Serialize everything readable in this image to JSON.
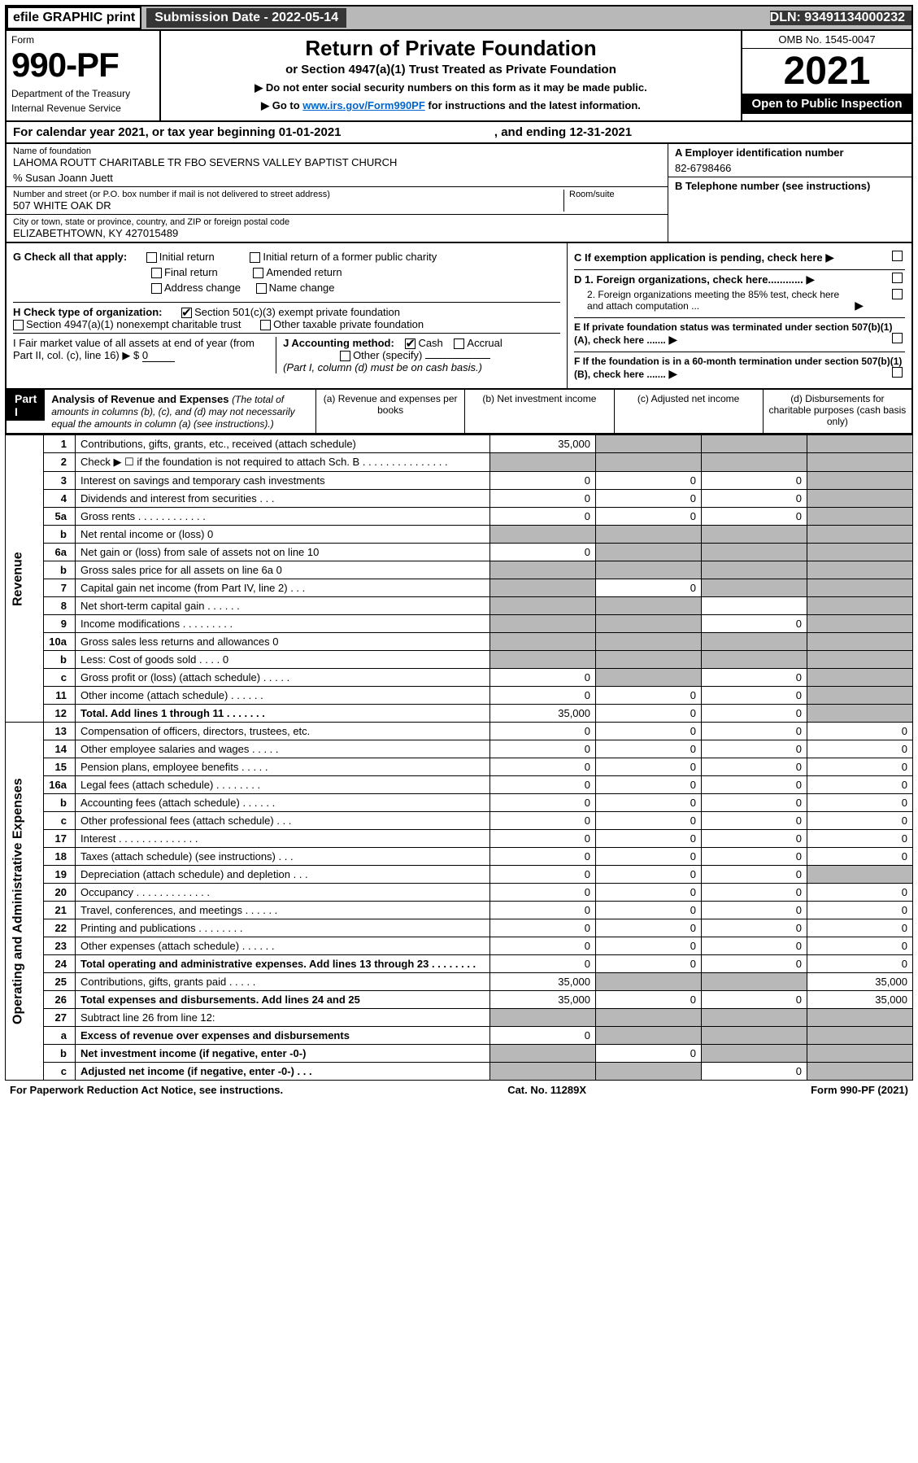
{
  "top": {
    "efile": "efile GRAPHIC print",
    "subdate_label": "Submission Date - 2022-05-14",
    "dln": "DLN: 93491134000232"
  },
  "header": {
    "form_word": "Form",
    "form_num": "990-PF",
    "dept": "Department of the Treasury",
    "irs": "Internal Revenue Service",
    "title": "Return of Private Foundation",
    "subtitle": "or Section 4947(a)(1) Trust Treated as Private Foundation",
    "instr1": "▶ Do not enter social security numbers on this form as it may be made public.",
    "instr2_pre": "▶ Go to ",
    "instr2_link": "www.irs.gov/Form990PF",
    "instr2_post": " for instructions and the latest information.",
    "omb": "OMB No. 1545-0047",
    "year": "2021",
    "open": "Open to Public Inspection"
  },
  "calyear": {
    "text_pre": "For calendar year 2021, or tax year beginning 01-01-2021",
    "text_mid": ", and ending 12-31-2021"
  },
  "info": {
    "name_label": "Name of foundation",
    "name": "LAHOMA ROUTT CHARITABLE TR FBO SEVERNS VALLEY BAPTIST CHURCH",
    "care": "% Susan Joann Juett",
    "addr_label": "Number and street (or P.O. box number if mail is not delivered to street address)",
    "addr": "507 WHITE OAK DR",
    "room_label": "Room/suite",
    "city_label": "City or town, state or province, country, and ZIP or foreign postal code",
    "city": "ELIZABETHTOWN, KY 427015489",
    "ein_label": "A Employer identification number",
    "ein": "82-6798466",
    "tel_label": "B Telephone number (see instructions)",
    "c_label": "C If exemption application is pending, check here",
    "d1": "D 1. Foreign organizations, check here............",
    "d2": "2. Foreign organizations meeting the 85% test, check here and attach computation ...",
    "e": "E If private foundation status was terminated under section 507(b)(1)(A), check here .......",
    "f": "F If the foundation is in a 60-month termination under section 507(b)(1)(B), check here ......."
  },
  "g": {
    "label": "G Check all that apply:",
    "opts": [
      "Initial return",
      "Final return",
      "Address change",
      "Initial return of a former public charity",
      "Amended return",
      "Name change"
    ]
  },
  "h": {
    "label": "H Check type of organization:",
    "o1": "Section 501(c)(3) exempt private foundation",
    "o2": "Section 4947(a)(1) nonexempt charitable trust",
    "o3": "Other taxable private foundation"
  },
  "i": {
    "label_pre": "I Fair market value of all assets at end of year (from Part II, col. (c), line 16) ▶ $ ",
    "val": "0"
  },
  "j": {
    "label": "J Accounting method:",
    "cash": "Cash",
    "accrual": "Accrual",
    "other": "Other (specify)",
    "note": "(Part I, column (d) must be on cash basis.)"
  },
  "part1": {
    "badge": "Part I",
    "title": "Analysis of Revenue and Expenses",
    "note": "(The total of amounts in columns (b), (c), and (d) may not necessarily equal the amounts in column (a) (see instructions).)",
    "cols": {
      "a": "(a) Revenue and expenses per books",
      "b": "(b) Net investment income",
      "c": "(c) Adjusted net income",
      "d": "(d) Disbursements for charitable purposes (cash basis only)"
    }
  },
  "sections": {
    "revenue": "Revenue",
    "opadmin": "Operating and Administrative Expenses"
  },
  "rows": [
    {
      "n": "1",
      "d": "Contributions, gifts, grants, etc., received (attach schedule)",
      "a": "35,000",
      "b": "",
      "c": "",
      "dd": "",
      "sb": true,
      "sc": true,
      "sd": true
    },
    {
      "n": "2",
      "d": "Check ▶ ☐ if the foundation is not required to attach Sch. B  . . . . . . . . . . . . . . .",
      "a": "",
      "b": "",
      "c": "",
      "dd": "",
      "sa": true,
      "sb": true,
      "sc": true,
      "sd": true
    },
    {
      "n": "3",
      "d": "Interest on savings and temporary cash investments",
      "a": "0",
      "b": "0",
      "c": "0",
      "dd": "",
      "sd": true
    },
    {
      "n": "4",
      "d": "Dividends and interest from securities  . . .",
      "a": "0",
      "b": "0",
      "c": "0",
      "dd": "",
      "sd": true
    },
    {
      "n": "5a",
      "d": "Gross rents  . . . . . . . . . . . .",
      "a": "0",
      "b": "0",
      "c": "0",
      "dd": "",
      "sd": true
    },
    {
      "n": "b",
      "d": "Net rental income or (loss)           0",
      "a": "",
      "b": "",
      "c": "",
      "dd": "",
      "sa": true,
      "sb": true,
      "sc": true,
      "sd": true
    },
    {
      "n": "6a",
      "d": "Net gain or (loss) from sale of assets not on line 10",
      "a": "0",
      "b": "",
      "c": "",
      "dd": "",
      "sb": true,
      "sc": true,
      "sd": true
    },
    {
      "n": "b",
      "d": "Gross sales price for all assets on line 6a          0",
      "a": "",
      "b": "",
      "c": "",
      "dd": "",
      "sa": true,
      "sb": true,
      "sc": true,
      "sd": true
    },
    {
      "n": "7",
      "d": "Capital gain net income (from Part IV, line 2)  . . .",
      "a": "",
      "b": "0",
      "c": "",
      "dd": "",
      "sa": true,
      "sc": true,
      "sd": true
    },
    {
      "n": "8",
      "d": "Net short-term capital gain  . . . . . .",
      "a": "",
      "b": "",
      "c": "",
      "dd": "",
      "sa": true,
      "sb": true,
      "sd": true
    },
    {
      "n": "9",
      "d": "Income modifications . . . . . . . . .",
      "a": "",
      "b": "",
      "c": "0",
      "dd": "",
      "sa": true,
      "sb": true,
      "sd": true
    },
    {
      "n": "10a",
      "d": "Gross sales less returns and allowances        0",
      "a": "",
      "b": "",
      "c": "",
      "dd": "",
      "sa": true,
      "sb": true,
      "sc": true,
      "sd": true
    },
    {
      "n": "b",
      "d": "Less: Cost of goods sold  . . . .         0",
      "a": "",
      "b": "",
      "c": "",
      "dd": "",
      "sa": true,
      "sb": true,
      "sc": true,
      "sd": true
    },
    {
      "n": "c",
      "d": "Gross profit or (loss) (attach schedule)  . . . . .",
      "a": "0",
      "b": "",
      "c": "0",
      "dd": "",
      "sb": true,
      "sd": true
    },
    {
      "n": "11",
      "d": "Other income (attach schedule)  . . . . . .",
      "a": "0",
      "b": "0",
      "c": "0",
      "dd": "",
      "sd": true
    },
    {
      "n": "12",
      "d": "Total. Add lines 1 through 11  . . . . . . .",
      "a": "35,000",
      "b": "0",
      "c": "0",
      "dd": "",
      "sd": true,
      "bold": true
    },
    {
      "n": "13",
      "d": "Compensation of officers, directors, trustees, etc.",
      "a": "0",
      "b": "0",
      "c": "0",
      "dd": "0"
    },
    {
      "n": "14",
      "d": "Other employee salaries and wages  . . . . .",
      "a": "0",
      "b": "0",
      "c": "0",
      "dd": "0"
    },
    {
      "n": "15",
      "d": "Pension plans, employee benefits  . . . . .",
      "a": "0",
      "b": "0",
      "c": "0",
      "dd": "0"
    },
    {
      "n": "16a",
      "d": "Legal fees (attach schedule) . . . . . . . .",
      "a": "0",
      "b": "0",
      "c": "0",
      "dd": "0"
    },
    {
      "n": "b",
      "d": "Accounting fees (attach schedule) . . . . . .",
      "a": "0",
      "b": "0",
      "c": "0",
      "dd": "0"
    },
    {
      "n": "c",
      "d": "Other professional fees (attach schedule)  . . .",
      "a": "0",
      "b": "0",
      "c": "0",
      "dd": "0"
    },
    {
      "n": "17",
      "d": "Interest . . . . . . . . . . . . . .",
      "a": "0",
      "b": "0",
      "c": "0",
      "dd": "0"
    },
    {
      "n": "18",
      "d": "Taxes (attach schedule) (see instructions)  . . .",
      "a": "0",
      "b": "0",
      "c": "0",
      "dd": "0"
    },
    {
      "n": "19",
      "d": "Depreciation (attach schedule) and depletion  . . .",
      "a": "0",
      "b": "0",
      "c": "0",
      "dd": "",
      "sd": true
    },
    {
      "n": "20",
      "d": "Occupancy . . . . . . . . . . . . .",
      "a": "0",
      "b": "0",
      "c": "0",
      "dd": "0"
    },
    {
      "n": "21",
      "d": "Travel, conferences, and meetings . . . . . .",
      "a": "0",
      "b": "0",
      "c": "0",
      "dd": "0"
    },
    {
      "n": "22",
      "d": "Printing and publications . . . . . . . .",
      "a": "0",
      "b": "0",
      "c": "0",
      "dd": "0"
    },
    {
      "n": "23",
      "d": "Other expenses (attach schedule) . . . . . .",
      "a": "0",
      "b": "0",
      "c": "0",
      "dd": "0"
    },
    {
      "n": "24",
      "d": "Total operating and administrative expenses. Add lines 13 through 23  . . . . . . . .",
      "a": "0",
      "b": "0",
      "c": "0",
      "dd": "0",
      "bold": true
    },
    {
      "n": "25",
      "d": "Contributions, gifts, grants paid  . . . . .",
      "a": "35,000",
      "b": "",
      "c": "",
      "dd": "35,000",
      "sb": true,
      "sc": true
    },
    {
      "n": "26",
      "d": "Total expenses and disbursements. Add lines 24 and 25",
      "a": "35,000",
      "b": "0",
      "c": "0",
      "dd": "35,000",
      "bold": true
    },
    {
      "n": "27",
      "d": "Subtract line 26 from line 12:",
      "a": "",
      "b": "",
      "c": "",
      "dd": "",
      "sa": true,
      "sb": true,
      "sc": true,
      "sd": true
    },
    {
      "n": "a",
      "d": "Excess of revenue over expenses and disbursements",
      "a": "0",
      "b": "",
      "c": "",
      "dd": "",
      "sb": true,
      "sc": true,
      "sd": true,
      "bold": true
    },
    {
      "n": "b",
      "d": "Net investment income (if negative, enter -0-)",
      "a": "",
      "b": "0",
      "c": "",
      "dd": "",
      "sa": true,
      "sc": true,
      "sd": true,
      "bold": true
    },
    {
      "n": "c",
      "d": "Adjusted net income (if negative, enter -0-)  . . .",
      "a": "",
      "b": "",
      "c": "0",
      "dd": "",
      "sa": true,
      "sb": true,
      "sd": true,
      "bold": true
    }
  ],
  "footer": {
    "left": "For Paperwork Reduction Act Notice, see instructions.",
    "mid": "Cat. No. 11289X",
    "right": "Form 990-PF (2021)"
  }
}
